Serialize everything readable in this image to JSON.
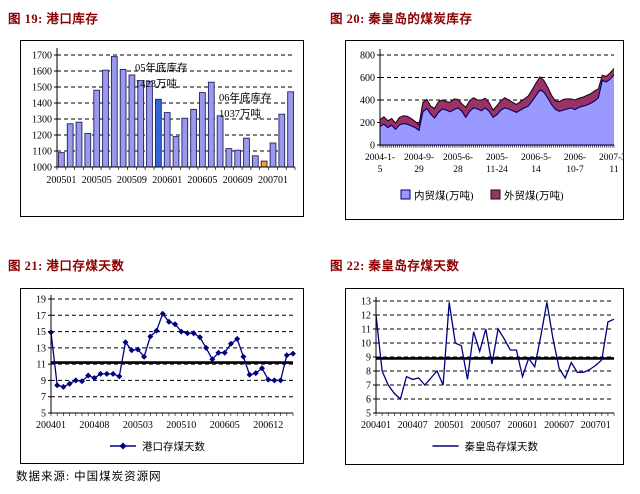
{
  "source_note": "数据来源: 中国煤炭资源网",
  "chart_data": [
    {
      "id": "fig19",
      "type": "bar",
      "title": "图 19: 港口库存",
      "categories": [
        "200501",
        "200502",
        "200503",
        "200504",
        "200505",
        "200506",
        "200507",
        "200508",
        "200509",
        "200510",
        "200511",
        "200512",
        "200601",
        "200602",
        "200603",
        "200604",
        "200605",
        "200606",
        "200607",
        "200608",
        "200609",
        "200610",
        "200611",
        "200612",
        "200701",
        "200702",
        "200703"
      ],
      "values": [
        1090,
        1270,
        1280,
        1210,
        1480,
        1605,
        1690,
        1610,
        1575,
        1540,
        1535,
        1423,
        1340,
        1190,
        1305,
        1360,
        1465,
        1530,
        1320,
        1115,
        1105,
        1180,
        1070,
        1037,
        1150,
        1330,
        1470
      ],
      "ylim": [
        1000,
        1700
      ],
      "yticks": [
        1000,
        1100,
        1200,
        1300,
        1400,
        1500,
        1600,
        1700
      ],
      "x_tick_labels": [
        "200501",
        "200505",
        "200509",
        "200601",
        "200605",
        "200609",
        "200701"
      ],
      "x_tick_positions": [
        0,
        4,
        8,
        12,
        16,
        20,
        24
      ],
      "bar_color": "#9A9AEC",
      "bar_border": "#202060",
      "highlights": [
        {
          "index": 11,
          "color": "#3366DD",
          "note": "05年底库存 1423万吨"
        },
        {
          "index": 23,
          "color": "#F2A129",
          "note": "06年底库存 1037万吨"
        }
      ],
      "annotations": [
        {
          "lines": [
            "05年底库存",
            "1423万吨"
          ],
          "x": 114,
          "y": 30
        },
        {
          "lines": [
            "06年底库存",
            "1037万吨"
          ],
          "x": 198,
          "y": 60
        }
      ]
    },
    {
      "id": "fig20",
      "type": "area",
      "title": "图 20: 秦皇岛的煤炭库存",
      "ylim": [
        0,
        800
      ],
      "yticks": [
        0,
        200,
        400,
        600,
        800
      ],
      "x_tick_labels": [
        [
          "2004-1-",
          "5"
        ],
        [
          "2004-9-",
          "29"
        ],
        [
          "2005-6-",
          "28"
        ],
        [
          "2005-",
          "11-24"
        ],
        [
          "2006-5-",
          "14"
        ],
        [
          "2006-",
          "10-7"
        ],
        [
          "2007-3-",
          "11"
        ]
      ],
      "x_tick_positions": [
        0,
        10,
        20,
        30,
        40,
        50,
        60
      ],
      "series": [
        {
          "name": "内贸煤(万吨)",
          "color": "#9999FF",
          "edge": "#000066",
          "values": [
            165,
            185,
            155,
            175,
            140,
            180,
            190,
            185,
            170,
            155,
            130,
            295,
            325,
            275,
            240,
            290,
            320,
            310,
            295,
            315,
            330,
            300,
            245,
            300,
            330,
            320,
            305,
            330,
            300,
            245,
            270,
            310,
            330,
            320,
            305,
            290,
            310,
            330,
            345,
            390,
            440,
            490,
            470,
            420,
            360,
            315,
            300,
            310,
            320,
            330,
            315,
            335,
            345,
            355,
            370,
            390,
            420,
            575,
            560,
            585,
            625
          ]
        },
        {
          "name": "外贸煤(万吨)",
          "color": "#993366",
          "edge": "#26001A",
          "values": [
            60,
            65,
            60,
            60,
            55,
            65,
            70,
            70,
            65,
            55,
            50,
            85,
            80,
            70,
            85,
            95,
            80,
            75,
            85,
            95,
            75,
            65,
            90,
            95,
            90,
            80,
            95,
            85,
            75,
            65,
            80,
            85,
            90,
            80,
            75,
            70,
            75,
            80,
            90,
            100,
            110,
            115,
            105,
            95,
            80,
            75,
            85,
            95,
            90,
            80,
            85,
            80,
            80,
            85,
            85,
            90,
            80,
            45,
            50,
            55,
            55
          ]
        }
      ]
    },
    {
      "id": "fig21",
      "type": "line",
      "title": "图 21: 港口存煤天数",
      "legend": "港口存煤天数",
      "values": [
        14.9,
        8.4,
        8.2,
        8.6,
        9.0,
        8.9,
        9.6,
        9.3,
        9.8,
        9.8,
        9.8,
        9.5,
        13.7,
        12.7,
        12.8,
        11.9,
        14.4,
        15.1,
        17.2,
        16.2,
        15.9,
        15.0,
        14.8,
        14.8,
        14.3,
        13.0,
        11.6,
        12.4,
        12.4,
        13.5,
        14.1,
        11.9,
        9.7,
        9.9,
        10.5,
        9.1,
        9.0,
        9.0,
        12.1,
        12.3
      ],
      "mean_line": 11.2,
      "ylim": [
        5,
        19
      ],
      "yticks": [
        5,
        7,
        9,
        11,
        13,
        15,
        17,
        19
      ],
      "x_tick_labels": [
        "200401",
        "200408",
        "200503",
        "200510",
        "200605",
        "200612"
      ],
      "x_tick_positions": [
        0,
        7,
        14,
        21,
        28,
        35
      ],
      "line_color": "#000080",
      "marker": "diamond"
    },
    {
      "id": "fig22",
      "type": "line",
      "title": "图 22: 秦皇岛存煤天数",
      "legend": "秦皇岛存煤天数",
      "values": [
        12.0,
        8.0,
        7.0,
        6.4,
        6.0,
        7.6,
        7.4,
        7.5,
        7.0,
        7.5,
        8.0,
        7.0,
        12.9,
        10.0,
        9.8,
        7.4,
        10.8,
        9.4,
        11.0,
        8.5,
        11.0,
        10.3,
        9.5,
        9.5,
        7.6,
        8.9,
        8.3,
        10.5,
        12.9,
        10.3,
        8.2,
        7.5,
        8.6,
        7.9,
        7.9,
        8.1,
        8.4,
        8.8,
        11.5,
        11.7
      ],
      "mean_line": 8.9,
      "ylim": [
        5,
        13
      ],
      "yticks": [
        5,
        6,
        7,
        8,
        9,
        10,
        11,
        12,
        13
      ],
      "x_tick_labels": [
        "200401",
        "200407",
        "200501",
        "200507",
        "200601",
        "200607",
        "200701"
      ],
      "x_tick_positions": [
        0,
        6,
        12,
        18,
        24,
        30,
        36
      ],
      "line_color": "#000080",
      "marker": "none"
    }
  ]
}
